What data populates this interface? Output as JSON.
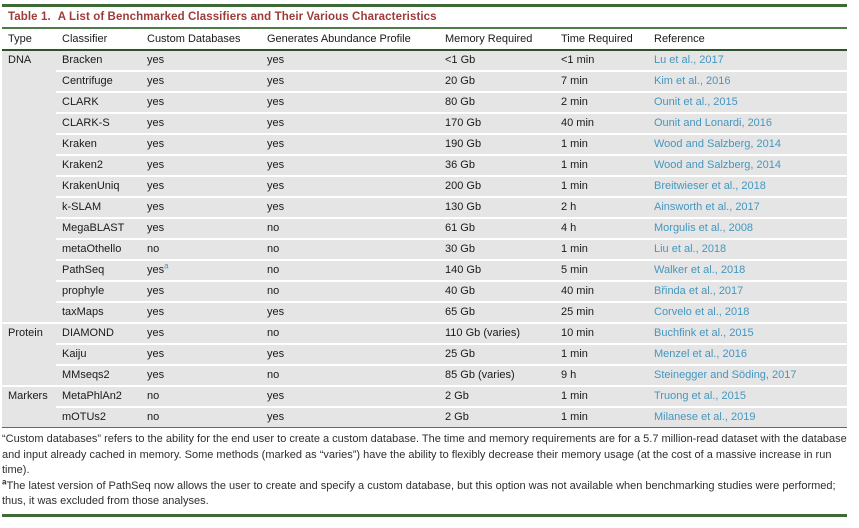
{
  "title": {
    "label": "Table 1.",
    "caption": "A List of Benchmarked Classifiers and Their Various Characteristics"
  },
  "columns": [
    "Type",
    "Classifier",
    "Custom Databases",
    "Generates Abundance Profile",
    "Memory Required",
    "Time Required",
    "Reference"
  ],
  "groups": [
    {
      "type": "DNA",
      "rows": [
        {
          "classifier": "Bracken",
          "custom_databases": "yes",
          "abundance_profile": "yes",
          "memory": "<1 Gb",
          "time": "<1 min",
          "reference": "Lu et al., 2017"
        },
        {
          "classifier": "Centrifuge",
          "custom_databases": "yes",
          "abundance_profile": "yes",
          "memory": "20 Gb",
          "time": "7 min",
          "reference": "Kim et al., 2016"
        },
        {
          "classifier": "CLARK",
          "custom_databases": "yes",
          "abundance_profile": "yes",
          "memory": "80 Gb",
          "time": "2 min",
          "reference": "Ounit et al., 2015"
        },
        {
          "classifier": "CLARK-S",
          "custom_databases": "yes",
          "abundance_profile": "yes",
          "memory": "170 Gb",
          "time": "40 min",
          "reference": "Ounit and Lonardi, 2016"
        },
        {
          "classifier": "Kraken",
          "custom_databases": "yes",
          "abundance_profile": "yes",
          "memory": "190 Gb",
          "time": "1 min",
          "reference": "Wood and Salzberg, 2014"
        },
        {
          "classifier": "Kraken2",
          "custom_databases": "yes",
          "abundance_profile": "yes",
          "memory": "36 Gb",
          "time": "1 min",
          "reference": "Wood and Salzberg, 2014"
        },
        {
          "classifier": "KrakenUniq",
          "custom_databases": "yes",
          "abundance_profile": "yes",
          "memory": "200 Gb",
          "time": "1 min",
          "reference": "Breitwieser et al., 2018"
        },
        {
          "classifier": "k-SLAM",
          "custom_databases": "yes",
          "abundance_profile": "yes",
          "memory": "130 Gb",
          "time": "2 h",
          "reference": "Ainsworth et al., 2017"
        },
        {
          "classifier": "MegaBLAST",
          "custom_databases": "yes",
          "abundance_profile": "no",
          "memory": "61 Gb",
          "time": "4 h",
          "reference": "Morgulis et al., 2008"
        },
        {
          "classifier": "metaOthello",
          "custom_databases": "no",
          "abundance_profile": "no",
          "memory": "30 Gb",
          "time": "1 min",
          "reference": "Liu et al., 2018"
        },
        {
          "classifier": "PathSeq",
          "custom_databases": "yes",
          "custom_databases_marker": "a",
          "abundance_profile": "no",
          "memory": "140 Gb",
          "time": "5 min",
          "reference": "Walker et al., 2018"
        },
        {
          "classifier": "prophyle",
          "custom_databases": "yes",
          "abundance_profile": "no",
          "memory": "40 Gb",
          "time": "40 min",
          "reference": "Břinda et al., 2017"
        },
        {
          "classifier": "taxMaps",
          "custom_databases": "yes",
          "abundance_profile": "yes",
          "memory": "65 Gb",
          "time": "25 min",
          "reference": "Corvelo et al., 2018"
        }
      ]
    },
    {
      "type": "Protein",
      "rows": [
        {
          "classifier": "DIAMOND",
          "custom_databases": "yes",
          "abundance_profile": "no",
          "memory": "110 Gb (varies)",
          "time": "10 min",
          "reference": "Buchfink et al., 2015"
        },
        {
          "classifier": "Kaiju",
          "custom_databases": "yes",
          "abundance_profile": "yes",
          "memory": "25 Gb",
          "time": "1 min",
          "reference": "Menzel et al., 2016"
        },
        {
          "classifier": "MMseqs2",
          "custom_databases": "yes",
          "abundance_profile": "no",
          "memory": "85 Gb (varies)",
          "time": "9 h",
          "reference": "Steinegger and Söding, 2017"
        }
      ]
    },
    {
      "type": "Markers",
      "rows": [
        {
          "classifier": "MetaPhlAn2",
          "custom_databases": "no",
          "abundance_profile": "yes",
          "memory": "2 Gb",
          "time": "1 min",
          "reference": "Truong et al., 2015"
        },
        {
          "classifier": "mOTUs2",
          "custom_databases": "no",
          "abundance_profile": "yes",
          "memory": "2 Gb",
          "time": "1 min",
          "reference": "Milanese et al., 2019"
        }
      ]
    }
  ],
  "footnotes": {
    "general": "“Custom databases” refers to the ability for the end user to create a custom database. The time and memory requirements are for a 5.7 million-read dataset with the database and input already cached in memory. Some methods (marked as “varies”) have the ability to flexibly decrease their memory usage (at the cost of a massive increase in run time).",
    "a_marker": "a",
    "a_text": "The latest version of PathSeq now allows the user to create and specify a custom database, but this option was not available when benchmarking studies were performed; thus, it was excluded from those analyses."
  },
  "colors": {
    "accent_green": "#3e6a36",
    "title_maroon": "#9e3b38",
    "link_blue": "#4497c0",
    "row_gray": "#e5e5e5"
  }
}
